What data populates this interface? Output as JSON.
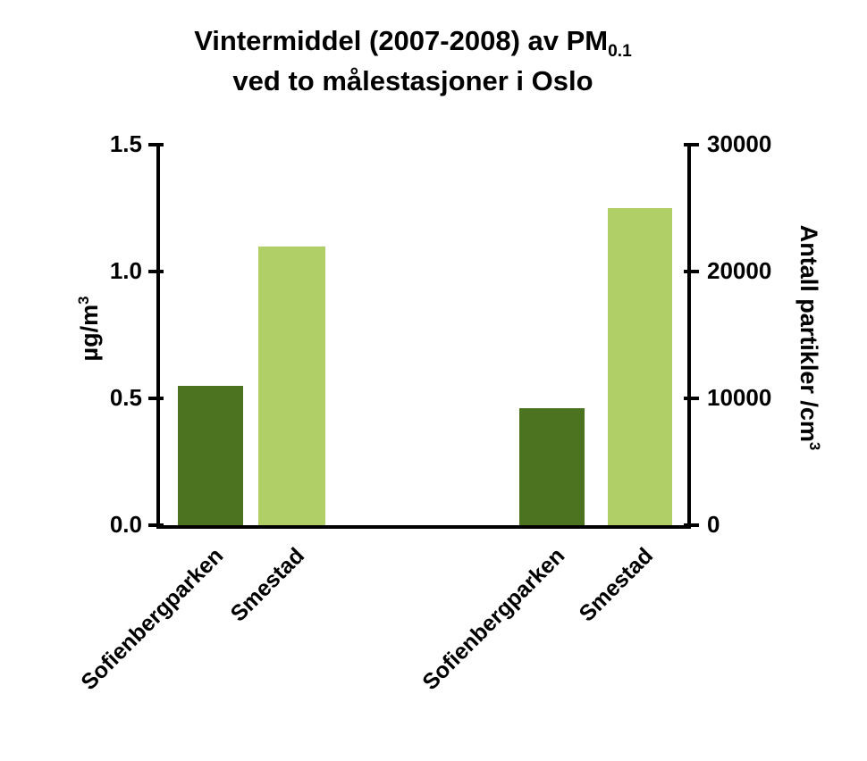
{
  "chart_data": {
    "type": "bar",
    "title": {
      "line1_main": "Vintermiddel (2007-2008) av PM",
      "line1_sub": "0.1",
      "line2": "ved to målestasjoner i Oslo",
      "full": "Vintermiddel (2007-2008) av PM0.1 ved to målestasjoner i Oslo"
    },
    "left_axis": {
      "label_main": "µg/m",
      "label_sup": "3",
      "label_full": "µg/m³",
      "range": [
        0,
        1.5
      ],
      "tick_values": [
        0,
        0.5,
        1.0,
        1.5
      ],
      "tick_labels": [
        "0.0",
        "0.5",
        "1.0",
        "1.5"
      ]
    },
    "right_axis": {
      "label_main": "Antall partikler /cm",
      "label_sup": "3",
      "label_full": "Antall partikler /cm³",
      "range": [
        0,
        30000
      ],
      "tick_values": [
        0,
        10000,
        20000,
        30000
      ],
      "tick_labels": [
        "0",
        "10000",
        "20000",
        "30000"
      ]
    },
    "categories": [
      "Sofienbergparken",
      "Smestad",
      "Sofienbergparken",
      "Smestad"
    ],
    "bars": [
      {
        "category": "Sofienbergparken",
        "axis": "left",
        "value": 0.55,
        "color": "#4c7320"
      },
      {
        "category": "Smestad",
        "axis": "left",
        "value": 1.1,
        "color": "#b1cf67"
      },
      {
        "category": "Sofienbergparken",
        "axis": "right",
        "value": 9200,
        "color": "#4c7320"
      },
      {
        "category": "Smestad",
        "axis": "right",
        "value": 25000,
        "color": "#b1cf67"
      }
    ],
    "grid": false,
    "legend": "none",
    "background": "#ffffff",
    "axis_color": "#000000"
  }
}
